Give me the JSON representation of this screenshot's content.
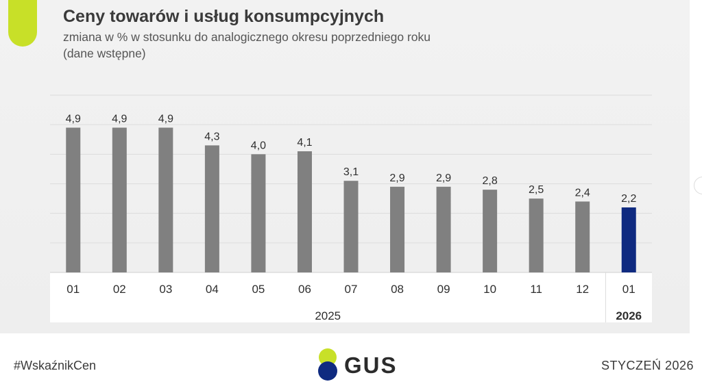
{
  "header": {
    "title": "Ceny towarów i usług konsumpcyjnych",
    "subtitle_line1": "zmiana w % w stosunku do analogicznego okresu poprzedniego roku",
    "subtitle_line2": "(dane wstępne)"
  },
  "footer": {
    "hashtag": "#WskaźnikCen",
    "logo_text": "GUS",
    "date": "STYCZEŃ 2026"
  },
  "colors": {
    "accent": "#c8e028",
    "bar_default": "#808080",
    "bar_highlight": "#0f2a80",
    "logo_green": "#c8e028",
    "logo_navy": "#0f2a80"
  },
  "chart_data": {
    "type": "bar",
    "title": "Ceny towarów i usług konsumpcyjnych",
    "subtitle": "zmiana w % w stosunku do analogicznego okresu poprzedniego roku (dane wstępne)",
    "categories": [
      "01",
      "02",
      "03",
      "04",
      "05",
      "06",
      "07",
      "08",
      "09",
      "10",
      "11",
      "12",
      "01"
    ],
    "values": [
      4.9,
      4.9,
      4.9,
      4.3,
      4.0,
      4.1,
      3.1,
      2.9,
      2.9,
      2.8,
      2.5,
      2.4,
      2.2
    ],
    "value_labels": [
      "4,9",
      "4,9",
      "4,9",
      "4,3",
      "4,0",
      "4,1",
      "3,1",
      "2,9",
      "2,9",
      "2,8",
      "2,5",
      "2,4",
      "2,2"
    ],
    "groups": [
      {
        "label": "2025",
        "start": 0,
        "end": 11
      },
      {
        "label": "2026",
        "start": 12,
        "end": 12
      }
    ],
    "highlight_index": 12,
    "ylim": [
      0,
      6
    ],
    "grid": true,
    "xlabel": "",
    "ylabel": ""
  }
}
